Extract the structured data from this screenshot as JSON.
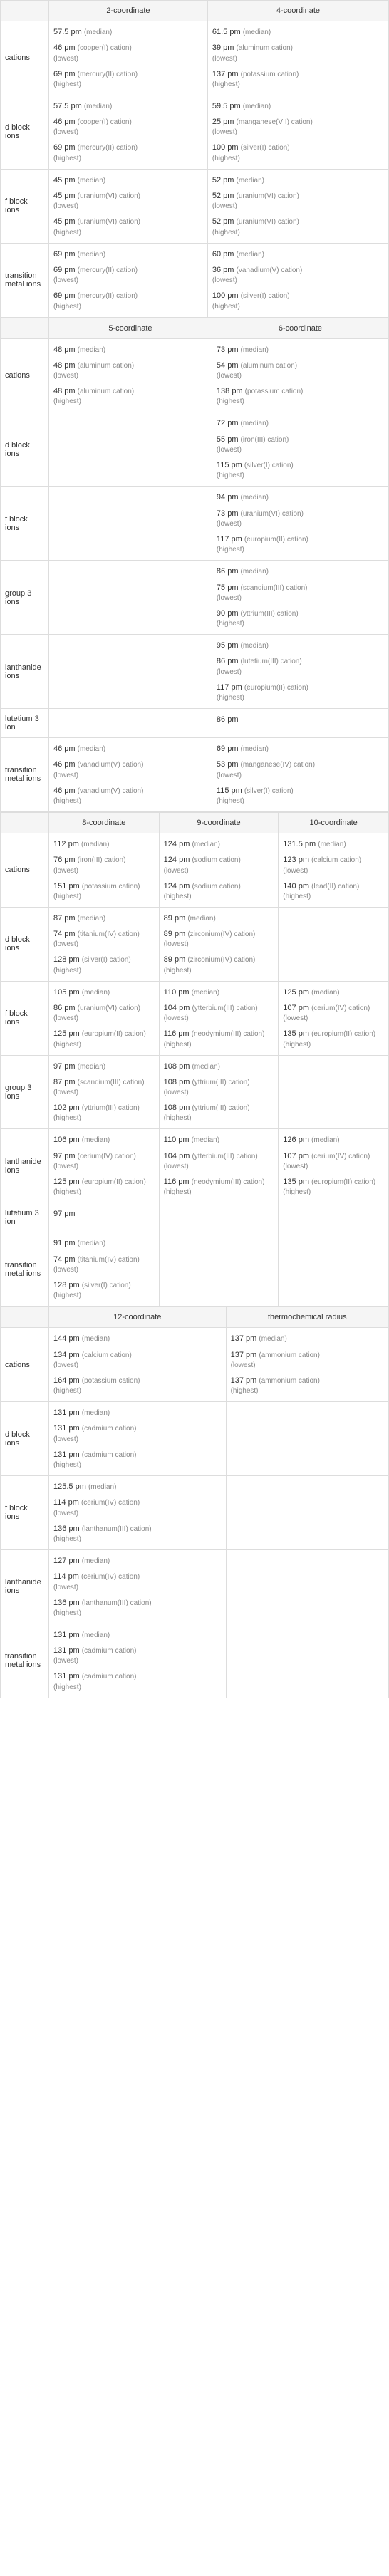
{
  "tables": [
    {
      "headers": [
        "2-coordinate",
        "4-coordinate"
      ],
      "rows": [
        {
          "label": "cations",
          "cells": [
            [
              {
                "v": "57.5 pm",
                "r": "(median)"
              },
              {
                "v": "46 pm",
                "d": "(copper(I) cation)",
                "s": "(lowest)"
              },
              {
                "v": "69 pm",
                "d": "(mercury(II) cation)",
                "s": "(highest)"
              }
            ],
            [
              {
                "v": "61.5 pm",
                "r": "(median)"
              },
              {
                "v": "39 pm",
                "d": "(aluminum cation)",
                "s": "(lowest)"
              },
              {
                "v": "137 pm",
                "d": "(potassium cation)",
                "s": "(highest)"
              }
            ]
          ]
        },
        {
          "label": "d block ions",
          "cells": [
            [
              {
                "v": "57.5 pm",
                "r": "(median)"
              },
              {
                "v": "46 pm",
                "d": "(copper(I) cation)",
                "s": "(lowest)"
              },
              {
                "v": "69 pm",
                "d": "(mercury(II) cation)",
                "s": "(highest)"
              }
            ],
            [
              {
                "v": "59.5 pm",
                "r": "(median)"
              },
              {
                "v": "25 pm",
                "d": "(manganese(VII) cation)",
                "s": "(lowest)"
              },
              {
                "v": "100 pm",
                "d": "(silver(I) cation)",
                "s": "(highest)"
              }
            ]
          ]
        },
        {
          "label": "f block ions",
          "cells": [
            [
              {
                "v": "45 pm",
                "r": "(median)"
              },
              {
                "v": "45 pm",
                "d": "(uranium(VI) cation)",
                "s": "(lowest)"
              },
              {
                "v": "45 pm",
                "d": "(uranium(VI) cation)",
                "s": "(highest)"
              }
            ],
            [
              {
                "v": "52 pm",
                "r": "(median)"
              },
              {
                "v": "52 pm",
                "d": "(uranium(VI) cation)",
                "s": "(lowest)"
              },
              {
                "v": "52 pm",
                "d": "(uranium(VI) cation)",
                "s": "(highest)"
              }
            ]
          ]
        },
        {
          "label": "transition metal ions",
          "cells": [
            [
              {
                "v": "69 pm",
                "r": "(median)"
              },
              {
                "v": "69 pm",
                "d": "(mercury(II) cation)",
                "s": "(lowest)"
              },
              {
                "v": "69 pm",
                "d": "(mercury(II) cation)",
                "s": "(highest)"
              }
            ],
            [
              {
                "v": "60 pm",
                "r": "(median)"
              },
              {
                "v": "36 pm",
                "d": "(vanadium(V) cation)",
                "s": "(lowest)"
              },
              {
                "v": "100 pm",
                "d": "(silver(I) cation)",
                "s": "(highest)"
              }
            ]
          ]
        }
      ]
    },
    {
      "headers": [
        "5-coordinate",
        "6-coordinate"
      ],
      "rows": [
        {
          "label": "cations",
          "cells": [
            [
              {
                "v": "48 pm",
                "r": "(median)"
              },
              {
                "v": "48 pm",
                "d": "(aluminum cation)",
                "s": "(lowest)"
              },
              {
                "v": "48 pm",
                "d": "(aluminum cation)",
                "s": "(highest)"
              }
            ],
            [
              {
                "v": "73 pm",
                "r": "(median)"
              },
              {
                "v": "54 pm",
                "d": "(aluminum cation)",
                "s": "(lowest)"
              },
              {
                "v": "138 pm",
                "d": "(potassium cation)",
                "s": "(highest)"
              }
            ]
          ]
        },
        {
          "label": "d block ions",
          "cells": [
            [],
            [
              {
                "v": "72 pm",
                "r": "(median)"
              },
              {
                "v": "55 pm",
                "d": "(iron(III) cation)",
                "s": "(lowest)"
              },
              {
                "v": "115 pm",
                "d": "(silver(I) cation)",
                "s": "(highest)"
              }
            ]
          ]
        },
        {
          "label": "f block ions",
          "cells": [
            [],
            [
              {
                "v": "94 pm",
                "r": "(median)"
              },
              {
                "v": "73 pm",
                "d": "(uranium(VI) cation)",
                "s": "(lowest)"
              },
              {
                "v": "117 pm",
                "d": "(europium(II) cation)",
                "s": "(highest)"
              }
            ]
          ]
        },
        {
          "label": "group 3 ions",
          "cells": [
            [],
            [
              {
                "v": "86 pm",
                "r": "(median)"
              },
              {
                "v": "75 pm",
                "d": "(scandium(III) cation)",
                "s": "(lowest)"
              },
              {
                "v": "90 pm",
                "d": "(yttrium(III) cation)",
                "s": "(highest)"
              }
            ]
          ]
        },
        {
          "label": "lanthanide ions",
          "cells": [
            [],
            [
              {
                "v": "95 pm",
                "r": "(median)"
              },
              {
                "v": "86 pm",
                "d": "(lutetium(III) cation)",
                "s": "(lowest)"
              },
              {
                "v": "117 pm",
                "d": "(europium(II) cation)",
                "s": "(highest)"
              }
            ]
          ]
        },
        {
          "label": "lutetium 3 ion",
          "cells": [
            [],
            [
              {
                "v": "86 pm"
              }
            ]
          ]
        },
        {
          "label": "transition metal ions",
          "cells": [
            [
              {
                "v": "46 pm",
                "r": "(median)"
              },
              {
                "v": "46 pm",
                "d": "(vanadium(V) cation)",
                "s": "(lowest)"
              },
              {
                "v": "46 pm",
                "d": "(vanadium(V) cation)",
                "s": "(highest)"
              }
            ],
            [
              {
                "v": "69 pm",
                "r": "(median)"
              },
              {
                "v": "53 pm",
                "d": "(manganese(IV) cation)",
                "s": "(lowest)"
              },
              {
                "v": "115 pm",
                "d": "(silver(I) cation)",
                "s": "(highest)"
              }
            ]
          ]
        }
      ]
    },
    {
      "headers": [
        "8-coordinate",
        "9-coordinate",
        "10-coordinate"
      ],
      "rows": [
        {
          "label": "cations",
          "cells": [
            [
              {
                "v": "112 pm",
                "r": "(median)"
              },
              {
                "v": "76 pm",
                "d": "(iron(III) cation)",
                "s": "(lowest)"
              },
              {
                "v": "151 pm",
                "d": "(potassium cation)",
                "s": "(highest)"
              }
            ],
            [
              {
                "v": "124 pm",
                "r": "(median)"
              },
              {
                "v": "124 pm",
                "d": "(sodium cation)",
                "s": "(lowest)"
              },
              {
                "v": "124 pm",
                "d": "(sodium cation)",
                "s": "(highest)"
              }
            ],
            [
              {
                "v": "131.5 pm",
                "r": "(median)"
              },
              {
                "v": "123 pm",
                "d": "(calcium cation)",
                "s": "(lowest)"
              },
              {
                "v": "140 pm",
                "d": "(lead(II) cation)",
                "s": "(highest)"
              }
            ]
          ]
        },
        {
          "label": "d block ions",
          "cells": [
            [
              {
                "v": "87 pm",
                "r": "(median)"
              },
              {
                "v": "74 pm",
                "d": "(titanium(IV) cation)",
                "s": "(lowest)"
              },
              {
                "v": "128 pm",
                "d": "(silver(I) cation)",
                "s": "(highest)"
              }
            ],
            [
              {
                "v": "89 pm",
                "r": "(median)"
              },
              {
                "v": "89 pm",
                "d": "(zirconium(IV) cation)",
                "s": "(lowest)"
              },
              {
                "v": "89 pm",
                "d": "(zirconium(IV) cation)",
                "s": "(highest)"
              }
            ],
            []
          ]
        },
        {
          "label": "f block ions",
          "cells": [
            [
              {
                "v": "105 pm",
                "r": "(median)"
              },
              {
                "v": "86 pm",
                "d": "(uranium(VI) cation)",
                "s": "(lowest)"
              },
              {
                "v": "125 pm",
                "d": "(europium(II) cation)",
                "s": "(highest)"
              }
            ],
            [
              {
                "v": "110 pm",
                "r": "(median)"
              },
              {
                "v": "104 pm",
                "d": "(ytterbium(III) cation)",
                "s": "(lowest)"
              },
              {
                "v": "116 pm",
                "d": "(neodymium(III) cation)",
                "s": "(highest)"
              }
            ],
            [
              {
                "v": "125 pm",
                "r": "(median)"
              },
              {
                "v": "107 pm",
                "d": "(cerium(IV) cation)",
                "s": "(lowest)"
              },
              {
                "v": "135 pm",
                "d": "(europium(II) cation)",
                "s": "(highest)"
              }
            ]
          ]
        },
        {
          "label": "group 3 ions",
          "cells": [
            [
              {
                "v": "97 pm",
                "r": "(median)"
              },
              {
                "v": "87 pm",
                "d": "(scandium(III) cation)",
                "s": "(lowest)"
              },
              {
                "v": "102 pm",
                "d": "(yttrium(III) cation)",
                "s": "(highest)"
              }
            ],
            [
              {
                "v": "108 pm",
                "r": "(median)"
              },
              {
                "v": "108 pm",
                "d": "(yttrium(III) cation)",
                "s": "(lowest)"
              },
              {
                "v": "108 pm",
                "d": "(yttrium(III) cation)",
                "s": "(highest)"
              }
            ],
            []
          ]
        },
        {
          "label": "lanthanide ions",
          "cells": [
            [
              {
                "v": "106 pm",
                "r": "(median)"
              },
              {
                "v": "97 pm",
                "d": "(cerium(IV) cation)",
                "s": "(lowest)"
              },
              {
                "v": "125 pm",
                "d": "(europium(II) cation)",
                "s": "(highest)"
              }
            ],
            [
              {
                "v": "110 pm",
                "r": "(median)"
              },
              {
                "v": "104 pm",
                "d": "(ytterbium(III) cation)",
                "s": "(lowest)"
              },
              {
                "v": "116 pm",
                "d": "(neodymium(III) cation)",
                "s": "(highest)"
              }
            ],
            [
              {
                "v": "126 pm",
                "r": "(median)"
              },
              {
                "v": "107 pm",
                "d": "(cerium(IV) cation)",
                "s": "(lowest)"
              },
              {
                "v": "135 pm",
                "d": "(europium(II) cation)",
                "s": "(highest)"
              }
            ]
          ]
        },
        {
          "label": "lutetium 3 ion",
          "cells": [
            [
              {
                "v": "97 pm"
              }
            ],
            [],
            []
          ]
        },
        {
          "label": "transition metal ions",
          "cells": [
            [
              {
                "v": "91 pm",
                "r": "(median)"
              },
              {
                "v": "74 pm",
                "d": "(titanium(IV) cation)",
                "s": "(lowest)"
              },
              {
                "v": "128 pm",
                "d": "(silver(I) cation)",
                "s": "(highest)"
              }
            ],
            [],
            []
          ]
        }
      ]
    },
    {
      "headers": [
        "12-coordinate",
        "thermochemical radius"
      ],
      "rows": [
        {
          "label": "cations",
          "cells": [
            [
              {
                "v": "144 pm",
                "r": "(median)"
              },
              {
                "v": "134 pm",
                "d": "(calcium cation)",
                "s": "(lowest)"
              },
              {
                "v": "164 pm",
                "d": "(potassium cation)",
                "s": "(highest)"
              }
            ],
            [
              {
                "v": "137 pm",
                "r": "(median)"
              },
              {
                "v": "137 pm",
                "d": "(ammonium cation)",
                "s": "(lowest)"
              },
              {
                "v": "137 pm",
                "d": "(ammonium cation)",
                "s": "(highest)"
              }
            ]
          ]
        },
        {
          "label": "d block ions",
          "cells": [
            [
              {
                "v": "131 pm",
                "r": "(median)"
              },
              {
                "v": "131 pm",
                "d": "(cadmium cation)",
                "s": "(lowest)"
              },
              {
                "v": "131 pm",
                "d": "(cadmium cation)",
                "s": "(highest)"
              }
            ],
            []
          ]
        },
        {
          "label": "f block ions",
          "cells": [
            [
              {
                "v": "125.5 pm",
                "r": "(median)"
              },
              {
                "v": "114 pm",
                "d": "(cerium(IV) cation)",
                "s": "(lowest)"
              },
              {
                "v": "136 pm",
                "d": "(lanthanum(III) cation)",
                "s": "(highest)"
              }
            ],
            []
          ]
        },
        {
          "label": "lanthanide ions",
          "cells": [
            [
              {
                "v": "127 pm",
                "r": "(median)"
              },
              {
                "v": "114 pm",
                "d": "(cerium(IV) cation)",
                "s": "(lowest)"
              },
              {
                "v": "136 pm",
                "d": "(lanthanum(III) cation)",
                "s": "(highest)"
              }
            ],
            []
          ]
        },
        {
          "label": "transition metal ions",
          "cells": [
            [
              {
                "v": "131 pm",
                "r": "(median)"
              },
              {
                "v": "131 pm",
                "d": "(cadmium cation)",
                "s": "(lowest)"
              },
              {
                "v": "131 pm",
                "d": "(cadmium cation)",
                "s": "(highest)"
              }
            ],
            []
          ]
        }
      ]
    }
  ]
}
